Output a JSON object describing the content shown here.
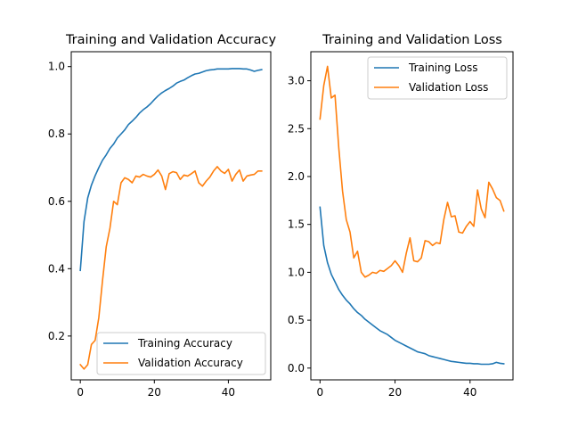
{
  "chart_data": [
    {
      "type": "line",
      "title": "Training and Validation Accuracy",
      "xlabel": "",
      "ylabel": "",
      "xlim": [
        -2.45,
        51.45
      ],
      "ylim": [
        0.0699,
        1.0442
      ],
      "xticks": [
        0,
        20,
        40
      ],
      "yticks": [
        0.2,
        0.4,
        0.6,
        0.8,
        1.0
      ],
      "xtick_labels": [
        "0",
        "20",
        "40"
      ],
      "ytick_labels": [
        "0.2",
        "0.4",
        "0.6",
        "0.8",
        "1.0"
      ],
      "legend": {
        "position": "lower-right"
      },
      "series": [
        {
          "name": "Training Accuracy",
          "color": "#1f77b4",
          "x": [
            0,
            1,
            2,
            3,
            4,
            5,
            6,
            7,
            8,
            9,
            10,
            11,
            12,
            13,
            14,
            15,
            16,
            17,
            18,
            19,
            20,
            21,
            22,
            23,
            24,
            25,
            26,
            27,
            28,
            29,
            30,
            31,
            32,
            33,
            34,
            35,
            36,
            37,
            38,
            39,
            40,
            41,
            42,
            43,
            44,
            45,
            46,
            47,
            48,
            49
          ],
          "values": [
            0.395,
            0.54,
            0.61,
            0.648,
            0.676,
            0.7,
            0.722,
            0.738,
            0.757,
            0.77,
            0.788,
            0.8,
            0.812,
            0.828,
            0.838,
            0.849,
            0.862,
            0.872,
            0.88,
            0.89,
            0.902,
            0.913,
            0.922,
            0.929,
            0.935,
            0.942,
            0.951,
            0.956,
            0.96,
            0.967,
            0.973,
            0.978,
            0.98,
            0.984,
            0.988,
            0.99,
            0.991,
            0.993,
            0.993,
            0.993,
            0.993,
            0.994,
            0.994,
            0.994,
            0.993,
            0.993,
            0.99,
            0.986,
            0.989,
            0.991
          ]
        },
        {
          "name": "Validation Accuracy",
          "color": "#ff7f0e",
          "x": [
            0,
            1,
            2,
            3,
            4,
            5,
            6,
            7,
            8,
            9,
            10,
            11,
            12,
            13,
            14,
            15,
            16,
            17,
            18,
            19,
            20,
            21,
            22,
            23,
            24,
            25,
            26,
            27,
            28,
            29,
            30,
            31,
            32,
            33,
            34,
            35,
            36,
            37,
            38,
            39,
            40,
            41,
            42,
            43,
            44,
            45,
            46,
            47,
            48,
            49
          ],
          "values": [
            0.115,
            0.102,
            0.115,
            0.175,
            0.187,
            0.255,
            0.365,
            0.465,
            0.52,
            0.6,
            0.59,
            0.655,
            0.67,
            0.665,
            0.655,
            0.675,
            0.672,
            0.68,
            0.675,
            0.672,
            0.68,
            0.693,
            0.675,
            0.635,
            0.682,
            0.688,
            0.685,
            0.665,
            0.678,
            0.675,
            0.682,
            0.69,
            0.655,
            0.645,
            0.66,
            0.672,
            0.69,
            0.703,
            0.69,
            0.683,
            0.695,
            0.66,
            0.68,
            0.693,
            0.66,
            0.675,
            0.678,
            0.68,
            0.69,
            0.69
          ]
        }
      ]
    },
    {
      "type": "line",
      "title": "Training and Validation Loss",
      "xlabel": "",
      "ylabel": "",
      "xlim": [
        -2.45,
        51.45
      ],
      "ylim": [
        -0.1228,
        3.3032
      ],
      "xticks": [
        0,
        20,
        40
      ],
      "yticks": [
        0.0,
        0.5,
        1.0,
        1.5,
        2.0,
        2.5,
        3.0
      ],
      "xtick_labels": [
        "0",
        "20",
        "40"
      ],
      "ytick_labels": [
        "0.0",
        "0.5",
        "1.0",
        "1.5",
        "2.0",
        "2.5",
        "3.0"
      ],
      "legend": {
        "position": "top-right"
      },
      "series": [
        {
          "name": "Training Loss",
          "color": "#1f77b4",
          "x": [
            0,
            1,
            2,
            3,
            4,
            5,
            6,
            7,
            8,
            9,
            10,
            11,
            12,
            13,
            14,
            15,
            16,
            17,
            18,
            19,
            20,
            21,
            22,
            23,
            24,
            25,
            26,
            27,
            28,
            29,
            30,
            31,
            32,
            33,
            34,
            35,
            36,
            37,
            38,
            39,
            40,
            41,
            42,
            43,
            44,
            45,
            46,
            47,
            48,
            49
          ],
          "values": [
            1.68,
            1.28,
            1.1,
            0.98,
            0.9,
            0.82,
            0.76,
            0.71,
            0.67,
            0.62,
            0.58,
            0.55,
            0.51,
            0.48,
            0.45,
            0.42,
            0.39,
            0.37,
            0.35,
            0.32,
            0.29,
            0.27,
            0.25,
            0.23,
            0.21,
            0.19,
            0.17,
            0.16,
            0.15,
            0.13,
            0.12,
            0.11,
            0.1,
            0.09,
            0.08,
            0.07,
            0.065,
            0.06,
            0.055,
            0.05,
            0.05,
            0.045,
            0.045,
            0.04,
            0.04,
            0.04,
            0.045,
            0.06,
            0.05,
            0.045
          ]
        },
        {
          "name": "Validation Loss",
          "color": "#ff7f0e",
          "x": [
            0,
            1,
            2,
            3,
            4,
            5,
            6,
            7,
            8,
            9,
            10,
            11,
            12,
            13,
            14,
            15,
            16,
            17,
            18,
            19,
            20,
            21,
            22,
            23,
            24,
            25,
            26,
            27,
            28,
            29,
            30,
            31,
            32,
            33,
            34,
            35,
            36,
            37,
            38,
            39,
            40,
            41,
            42,
            43,
            44,
            45,
            46,
            47,
            48,
            49
          ],
          "values": [
            2.6,
            2.95,
            3.15,
            2.82,
            2.85,
            2.3,
            1.85,
            1.55,
            1.42,
            1.15,
            1.22,
            1.0,
            0.95,
            0.97,
            1.0,
            0.99,
            1.02,
            1.01,
            1.04,
            1.07,
            1.12,
            1.07,
            1.0,
            1.2,
            1.36,
            1.12,
            1.11,
            1.15,
            1.33,
            1.32,
            1.28,
            1.31,
            1.3,
            1.55,
            1.73,
            1.58,
            1.59,
            1.42,
            1.41,
            1.48,
            1.53,
            1.48,
            1.86,
            1.66,
            1.57,
            1.94,
            1.87,
            1.78,
            1.75,
            1.64
          ]
        }
      ]
    }
  ]
}
